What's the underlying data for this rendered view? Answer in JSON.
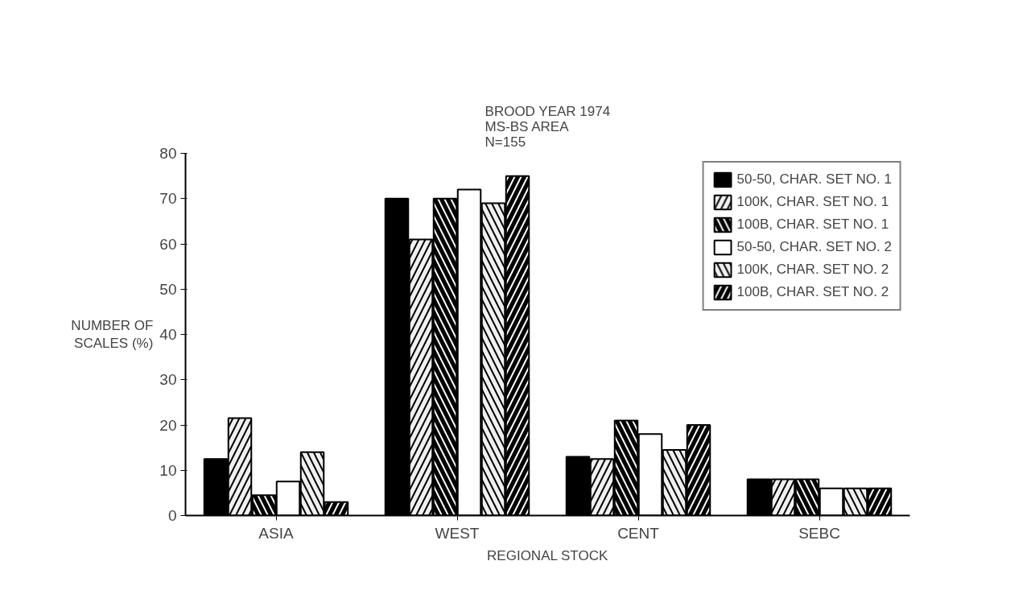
{
  "chart_data": {
    "type": "bar",
    "title": "BROOD YEAR 1974\nMS-BS AREA\nN=155",
    "xlabel": "REGIONAL STOCK",
    "ylabel": "NUMBER OF\nSCALES (%)",
    "categories": [
      "ASIA",
      "WEST",
      "CENT",
      "SEBC"
    ],
    "series": [
      {
        "name": "50-50, CHAR. SET NO. 1",
        "color": "#000000",
        "values": [
          12.5,
          70,
          13,
          8
        ]
      },
      {
        "name": "100K, CHAR. SET NO. 1",
        "color": "#f0f0f0",
        "values": [
          21.5,
          61,
          12.5,
          8
        ]
      },
      {
        "name": "100B, CHAR. SET NO. 1",
        "color": "#000000",
        "values": [
          4.5,
          70,
          21,
          8
        ]
      },
      {
        "name": "50-50, CHAR. SET NO. 2",
        "color": "#ffffff",
        "values": [
          7.5,
          72,
          18,
          6
        ]
      },
      {
        "name": "100K, CHAR. SET NO. 2",
        "color": "#f0f0f0",
        "values": [
          14,
          69,
          14.5,
          6
        ]
      },
      {
        "name": "100B, CHAR. SET NO. 2",
        "color": "#000000",
        "values": [
          3,
          75,
          20,
          6
        ]
      }
    ],
    "ylim": [
      0,
      80
    ],
    "yticks": [
      0,
      10,
      20,
      30,
      40,
      50,
      60,
      70,
      80
    ],
    "grid": false,
    "legend": "top right"
  }
}
